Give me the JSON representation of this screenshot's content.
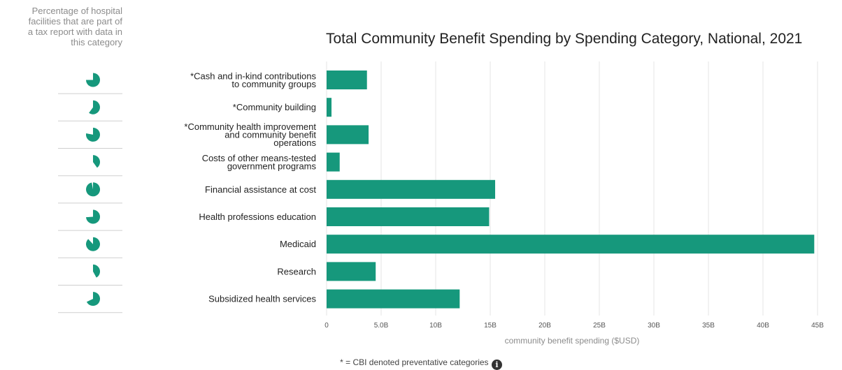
{
  "legend_title": [
    "Percentage of hospital",
    "facilities that are part of",
    "a tax report with data in",
    "this category"
  ],
  "footnote": "* = CBI denoted preventative categories",
  "colors": {
    "bar": "#16987c",
    "grid": "#e6e6e6",
    "pie": "#16987c"
  },
  "chart_data": {
    "type": "bar",
    "orientation": "horizontal",
    "title": "Total Community Benefit Spending by Spending Category, National, 2021",
    "xlabel": "community benefit spending ($USD)",
    "ylabel": "",
    "xlim": [
      0,
      45000000000
    ],
    "xticks": [
      {
        "value": 0,
        "label": "0"
      },
      {
        "value": 5000000000,
        "label": "5.0B"
      },
      {
        "value": 10000000000,
        "label": "10B"
      },
      {
        "value": 15000000000,
        "label": "15B"
      },
      {
        "value": 20000000000,
        "label": "20B"
      },
      {
        "value": 25000000000,
        "label": "25B"
      },
      {
        "value": 30000000000,
        "label": "30B"
      },
      {
        "value": 35000000000,
        "label": "35B"
      },
      {
        "value": 40000000000,
        "label": "40B"
      },
      {
        "value": 45000000000,
        "label": "45B"
      }
    ],
    "grid": true,
    "categories": [
      [
        "*Cash and in-kind contributions",
        "to community groups"
      ],
      [
        "*Community building"
      ],
      [
        "*Community health improvement",
        "and community benefit",
        "operations"
      ],
      [
        "Costs of other means-tested",
        "government programs"
      ],
      [
        "Financial assistance at cost"
      ],
      [
        "Health professions education"
      ],
      [
        "Medicaid"
      ],
      [
        "Research"
      ],
      [
        "Subsidized health services"
      ]
    ],
    "values": [
      3700000000,
      450000000,
      3850000000,
      1200000000,
      15450000000,
      14900000000,
      44700000000,
      4500000000,
      12200000000
    ],
    "percent_facilities": [
      75,
      60,
      78,
      40,
      97,
      74,
      88,
      42,
      68
    ]
  }
}
